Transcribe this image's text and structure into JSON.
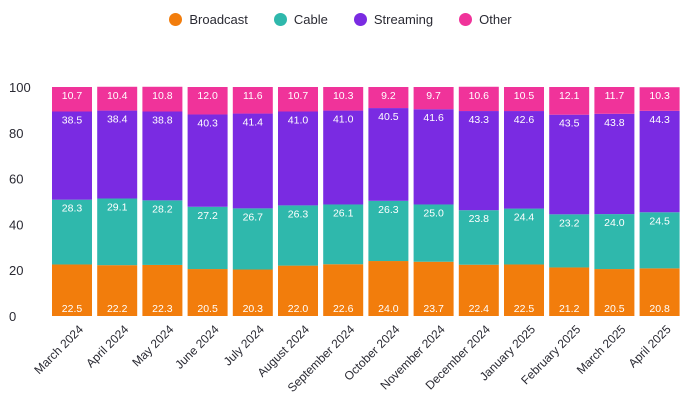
{
  "chart_data": {
    "type": "bar",
    "stacked": true,
    "categories": [
      "March 2024",
      "April 2024",
      "May 2024",
      "June 2024",
      "July 2024",
      "August 2024",
      "September 2024",
      "October 2024",
      "November 2024",
      "December 2024",
      "January 2025",
      "February 2025",
      "March 2025",
      "April 2025"
    ],
    "series": [
      {
        "name": "Broadcast",
        "color": "#F27D0C",
        "values": [
          22.5,
          22.2,
          22.3,
          20.5,
          20.3,
          22.0,
          22.6,
          24.0,
          23.7,
          22.4,
          22.5,
          21.2,
          20.5,
          20.8
        ]
      },
      {
        "name": "Cable",
        "color": "#2FB8AC",
        "values": [
          28.3,
          29.1,
          28.2,
          27.2,
          26.7,
          26.3,
          26.1,
          26.3,
          25.0,
          23.8,
          24.4,
          23.2,
          24.0,
          24.5
        ]
      },
      {
        "name": "Streaming",
        "color": "#7A2BE2",
        "values": [
          38.5,
          38.4,
          38.8,
          40.3,
          41.4,
          41.0,
          41.0,
          40.5,
          41.6,
          43.3,
          42.6,
          43.5,
          43.8,
          44.3
        ]
      },
      {
        "name": "Other",
        "color": "#F0339A",
        "values": [
          10.7,
          10.4,
          10.8,
          12.0,
          11.6,
          10.7,
          10.3,
          9.2,
          9.7,
          10.6,
          10.5,
          12.1,
          11.7,
          10.3
        ]
      }
    ],
    "value_labels": {
      "Broadcast": [
        "22.5",
        "22.2",
        "22.3",
        "20.5",
        "20.3",
        "22.0",
        "22.6",
        "24.0",
        "23.7",
        "22.4",
        "22.5",
        "21.2",
        "20.5",
        "20.8"
      ],
      "Cable": [
        "28.3",
        "29.1",
        "28.2",
        "27.2",
        "26.7",
        "26.3",
        "26.1",
        "26.3",
        "25.0",
        "23.8",
        "24.4",
        "23.2",
        "24.0",
        "24.5"
      ],
      "Streaming": [
        "38.5",
        "38.4",
        "38.8",
        "40.3",
        "41.4",
        "41.0",
        "41.0",
        "40.5",
        "41.6",
        "43.3",
        "42.6",
        "43.5",
        "43.8",
        "44.3"
      ],
      "Other": [
        "10.7",
        "10.4",
        "10.8",
        "12.0",
        "11.6",
        "10.7",
        "10.3",
        "9.2",
        "9.7",
        "10.6",
        "10.5",
        "12.1",
        "11.7",
        "10.3"
      ]
    },
    "ylim": [
      0,
      100
    ],
    "yticks": [
      "0",
      "20",
      "40",
      "60",
      "80",
      "100"
    ],
    "grid": false,
    "legend_position": "top-center"
  }
}
